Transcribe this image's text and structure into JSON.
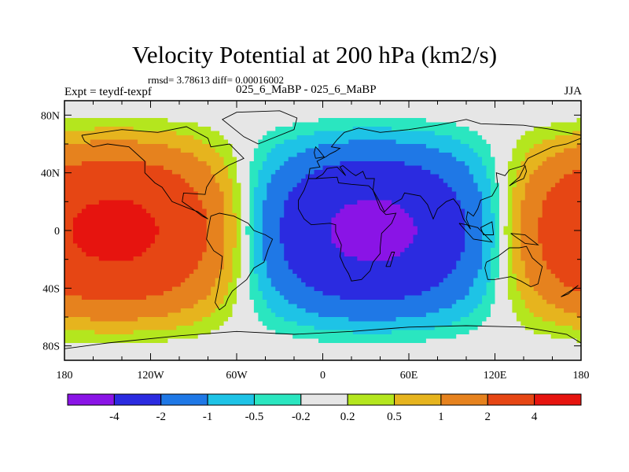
{
  "title": "Velocity Potential at 200 hPa (km2/s)",
  "stats": "rmsd= 3.78613 diff= 0.00016002",
  "left_label": "Expt = teydf-texpf",
  "center_label": "025_6_MaBP - 025_6_MaBP",
  "right_label": "JJA",
  "chart_data": {
    "type": "heatmap",
    "title": "Velocity Potential at 200 hPa (km2/s)",
    "subtitle": "025_6_MaBP - 025_6_MaBP",
    "variable": "Velocity Potential",
    "level": "200 hPa",
    "units": "km2/s",
    "season": "JJA",
    "experiment": "teydf-texpf",
    "rmsd": 3.78613,
    "diff": 0.00016002,
    "xlim": [
      -180,
      180
    ],
    "ylim": [
      -90,
      90
    ],
    "x_ticks": [
      -180,
      -120,
      -60,
      0,
      60,
      120,
      180
    ],
    "x_tick_labels": [
      "180",
      "120W",
      "60W",
      "0",
      "60E",
      "120E",
      "180"
    ],
    "y_ticks": [
      80,
      40,
      0,
      -40,
      -80
    ],
    "y_tick_labels": [
      "80N",
      "40N",
      "0",
      "40S",
      "80S"
    ],
    "field": {
      "description": "dipole: negative center over Africa/Indian Ocean, positive center over central Pacific",
      "min_center": {
        "lon": 35,
        "lat": 0,
        "value": -4.6
      },
      "max_center": {
        "lon": -165,
        "lat": 5,
        "value": 4.6
      }
    },
    "colorbar": {
      "levels": [
        "-4",
        "-2",
        "-1",
        "-0.5",
        "-0.2",
        "0.2",
        "0.5",
        "1",
        "2",
        "4"
      ],
      "colors": [
        "#8a14e6",
        "#2b2be0",
        "#1f78e6",
        "#1ec3e6",
        "#2ae6c0",
        "#e6e6e6",
        "#b4e61e",
        "#e6b41e",
        "#e6821e",
        "#e64614",
        "#e6140f"
      ]
    }
  }
}
